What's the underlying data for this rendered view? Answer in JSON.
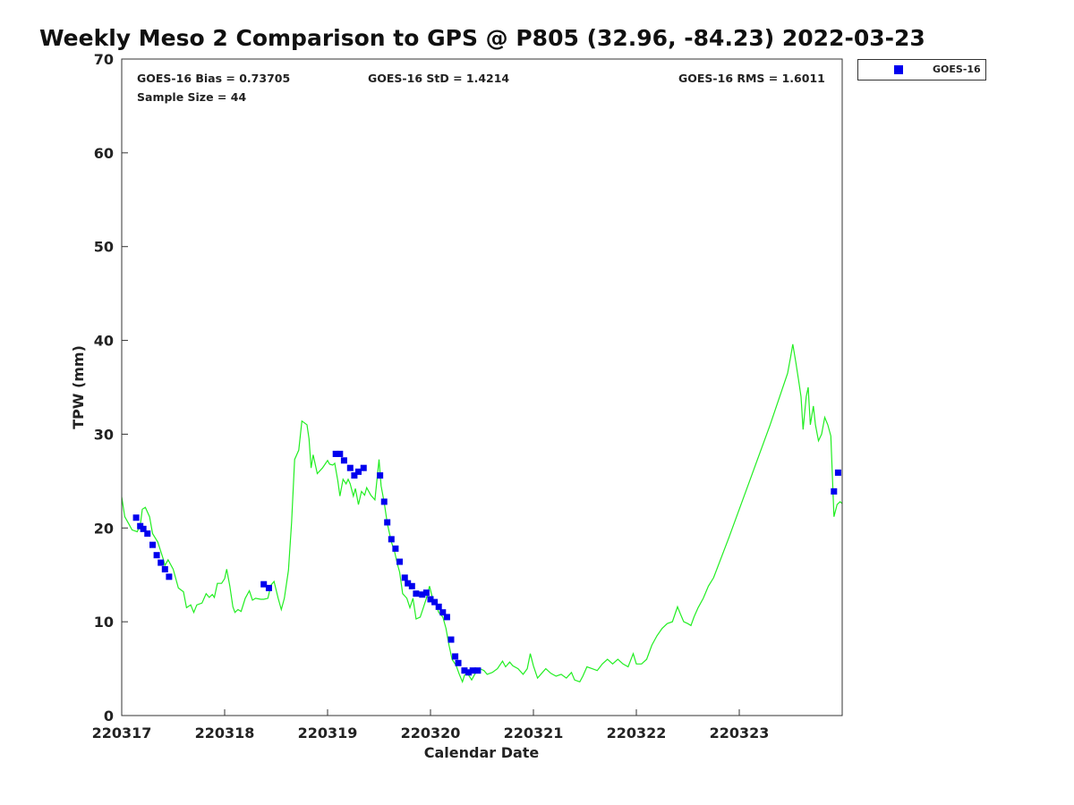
{
  "chart_data": {
    "type": "line+scatter",
    "title": "Weekly Meso 2 Comparison to GPS @ P805 (32.96, -84.23) 2022-03-23",
    "xlabel": "Calendar Date",
    "ylabel": "TPW (mm)",
    "xlim": [
      0,
      7
    ],
    "ylim": [
      0,
      70
    ],
    "x_ticks": [
      {
        "value": 0,
        "label": "220317"
      },
      {
        "value": 1,
        "label": "220318"
      },
      {
        "value": 2,
        "label": "220319"
      },
      {
        "value": 3,
        "label": "220320"
      },
      {
        "value": 4,
        "label": "220321"
      },
      {
        "value": 5,
        "label": "220322"
      },
      {
        "value": 6,
        "label": "220323"
      }
    ],
    "y_ticks": [
      0,
      10,
      20,
      30,
      40,
      50,
      60,
      70
    ],
    "stats": {
      "bias": "GOES-16 Bias = 0.73705",
      "std": "GOES-16 StD = 1.4214",
      "rms": "GOES-16 RMS = 1.6011",
      "sample": "Sample Size = 44"
    },
    "legend": {
      "label": "GOES-16",
      "color": "#0000ee",
      "position": "top-right outside"
    },
    "series": [
      {
        "name": "GPS",
        "kind": "line",
        "color": "#22ee22",
        "points": [
          [
            0.0,
            23.3
          ],
          [
            0.03,
            21.2
          ],
          [
            0.07,
            20.4
          ],
          [
            0.1,
            19.8
          ],
          [
            0.15,
            19.6
          ],
          [
            0.18,
            20.3
          ],
          [
            0.2,
            22.0
          ],
          [
            0.23,
            22.2
          ],
          [
            0.27,
            21.2
          ],
          [
            0.3,
            19.4
          ],
          [
            0.35,
            18.5
          ],
          [
            0.4,
            16.8
          ],
          [
            0.42,
            16.0
          ],
          [
            0.45,
            16.6
          ],
          [
            0.5,
            15.6
          ],
          [
            0.55,
            13.6
          ],
          [
            0.6,
            13.2
          ],
          [
            0.63,
            11.5
          ],
          [
            0.67,
            11.8
          ],
          [
            0.7,
            11.0
          ],
          [
            0.73,
            11.8
          ],
          [
            0.78,
            12.0
          ],
          [
            0.82,
            13.0
          ],
          [
            0.85,
            12.6
          ],
          [
            0.88,
            12.9
          ],
          [
            0.9,
            12.6
          ],
          [
            0.93,
            14.1
          ],
          [
            0.97,
            14.1
          ],
          [
            1.0,
            14.6
          ],
          [
            1.02,
            15.6
          ],
          [
            1.05,
            13.8
          ],
          [
            1.08,
            11.6
          ],
          [
            1.1,
            11.0
          ],
          [
            1.13,
            11.3
          ],
          [
            1.16,
            11.1
          ],
          [
            1.2,
            12.5
          ],
          [
            1.24,
            13.3
          ],
          [
            1.27,
            12.3
          ],
          [
            1.3,
            12.5
          ],
          [
            1.35,
            12.4
          ],
          [
            1.38,
            12.4
          ],
          [
            1.42,
            12.5
          ],
          [
            1.45,
            13.9
          ],
          [
            1.48,
            14.3
          ],
          [
            1.52,
            12.5
          ],
          [
            1.55,
            11.3
          ],
          [
            1.58,
            12.5
          ],
          [
            1.62,
            15.5
          ],
          [
            1.65,
            20.6
          ],
          [
            1.68,
            27.3
          ],
          [
            1.72,
            28.3
          ],
          [
            1.75,
            31.4
          ],
          [
            1.8,
            31.0
          ],
          [
            1.82,
            29.5
          ],
          [
            1.84,
            26.4
          ],
          [
            1.86,
            27.8
          ],
          [
            1.9,
            25.8
          ],
          [
            1.95,
            26.4
          ],
          [
            2.0,
            27.2
          ],
          [
            2.02,
            26.8
          ],
          [
            2.05,
            26.7
          ],
          [
            2.07,
            26.9
          ],
          [
            2.1,
            25.0
          ],
          [
            2.12,
            23.4
          ],
          [
            2.15,
            25.2
          ],
          [
            2.18,
            24.7
          ],
          [
            2.2,
            25.2
          ],
          [
            2.22,
            24.7
          ],
          [
            2.25,
            23.4
          ],
          [
            2.27,
            24.2
          ],
          [
            2.3,
            22.5
          ],
          [
            2.33,
            23.9
          ],
          [
            2.36,
            23.5
          ],
          [
            2.38,
            24.3
          ],
          [
            2.42,
            23.5
          ],
          [
            2.46,
            23.0
          ],
          [
            2.5,
            27.3
          ],
          [
            2.52,
            24.5
          ],
          [
            2.55,
            22.7
          ],
          [
            2.58,
            20.5
          ],
          [
            2.62,
            18.5
          ],
          [
            2.65,
            17.5
          ],
          [
            2.68,
            16.1
          ],
          [
            2.7,
            15.3
          ],
          [
            2.73,
            13.0
          ],
          [
            2.77,
            12.5
          ],
          [
            2.8,
            11.5
          ],
          [
            2.83,
            12.5
          ],
          [
            2.86,
            10.3
          ],
          [
            2.9,
            10.5
          ],
          [
            2.93,
            11.5
          ],
          [
            2.96,
            12.5
          ],
          [
            2.99,
            13.8
          ],
          [
            3.02,
            12.5
          ],
          [
            3.05,
            12.0
          ],
          [
            3.08,
            11.0
          ],
          [
            3.12,
            10.5
          ],
          [
            3.15,
            9.3
          ],
          [
            3.18,
            7.5
          ],
          [
            3.21,
            6.0
          ],
          [
            3.25,
            5.3
          ],
          [
            3.28,
            4.4
          ],
          [
            3.31,
            3.6
          ],
          [
            3.33,
            4.3
          ],
          [
            3.36,
            4.5
          ],
          [
            3.4,
            3.8
          ],
          [
            3.44,
            4.6
          ],
          [
            3.48,
            5.0
          ],
          [
            3.52,
            4.8
          ],
          [
            3.55,
            4.4
          ],
          [
            3.6,
            4.6
          ],
          [
            3.65,
            5.0
          ],
          [
            3.7,
            5.8
          ],
          [
            3.73,
            5.2
          ],
          [
            3.77,
            5.7
          ],
          [
            3.8,
            5.3
          ],
          [
            3.85,
            5.0
          ],
          [
            3.9,
            4.4
          ],
          [
            3.94,
            5.0
          ],
          [
            3.97,
            6.6
          ],
          [
            4.0,
            5.3
          ],
          [
            4.04,
            4.0
          ],
          [
            4.08,
            4.5
          ],
          [
            4.12,
            5.0
          ],
          [
            4.17,
            4.5
          ],
          [
            4.22,
            4.2
          ],
          [
            4.27,
            4.4
          ],
          [
            4.32,
            4.0
          ],
          [
            4.37,
            4.6
          ],
          [
            4.4,
            3.8
          ],
          [
            4.45,
            3.6
          ],
          [
            4.48,
            4.2
          ],
          [
            4.52,
            5.2
          ],
          [
            4.57,
            5.0
          ],
          [
            4.62,
            4.8
          ],
          [
            4.67,
            5.5
          ],
          [
            4.72,
            6.0
          ],
          [
            4.77,
            5.5
          ],
          [
            4.82,
            6.0
          ],
          [
            4.87,
            5.5
          ],
          [
            4.92,
            5.2
          ],
          [
            4.97,
            6.6
          ],
          [
            5.0,
            5.5
          ],
          [
            5.05,
            5.5
          ],
          [
            5.1,
            6.0
          ],
          [
            5.15,
            7.5
          ],
          [
            5.2,
            8.5
          ],
          [
            5.25,
            9.3
          ],
          [
            5.3,
            9.8
          ],
          [
            5.35,
            10.0
          ],
          [
            5.4,
            11.6
          ],
          [
            5.43,
            10.8
          ],
          [
            5.46,
            10.0
          ],
          [
            5.5,
            9.8
          ],
          [
            5.53,
            9.6
          ],
          [
            5.56,
            10.5
          ],
          [
            5.6,
            11.5
          ],
          [
            5.65,
            12.5
          ],
          [
            5.7,
            13.8
          ],
          [
            5.75,
            14.7
          ],
          [
            5.9,
            19.0
          ],
          [
            6.1,
            25.0
          ],
          [
            6.3,
            31.0
          ],
          [
            6.47,
            36.5
          ],
          [
            6.5,
            38.3
          ],
          [
            6.52,
            39.6
          ],
          [
            6.55,
            37.6
          ],
          [
            6.58,
            35.5
          ],
          [
            6.6,
            34.0
          ],
          [
            6.62,
            30.5
          ],
          [
            6.65,
            34.0
          ],
          [
            6.67,
            35.0
          ],
          [
            6.69,
            31.0
          ],
          [
            6.72,
            33.0
          ],
          [
            6.74,
            31.0
          ],
          [
            6.77,
            29.3
          ],
          [
            6.8,
            30.0
          ],
          [
            6.83,
            31.8
          ],
          [
            6.86,
            31.0
          ],
          [
            6.89,
            29.8
          ],
          [
            6.92,
            21.2
          ],
          [
            6.95,
            22.5
          ],
          [
            6.98,
            22.8
          ],
          [
            7.0,
            22.6
          ]
        ]
      },
      {
        "name": "GOES-16",
        "kind": "scatter",
        "color": "#0000ee",
        "points": [
          [
            0.14,
            21.1
          ],
          [
            0.18,
            20.2
          ],
          [
            0.21,
            19.9
          ],
          [
            0.25,
            19.4
          ],
          [
            0.3,
            18.2
          ],
          [
            0.34,
            17.1
          ],
          [
            0.38,
            16.3
          ],
          [
            0.42,
            15.6
          ],
          [
            0.46,
            14.8
          ],
          [
            1.38,
            14.0
          ],
          [
            1.43,
            13.6
          ],
          [
            2.08,
            27.9
          ],
          [
            2.12,
            27.9
          ],
          [
            2.16,
            27.2
          ],
          [
            2.22,
            26.4
          ],
          [
            2.26,
            25.6
          ],
          [
            2.3,
            26.0
          ],
          [
            2.35,
            26.4
          ],
          [
            2.51,
            25.6
          ],
          [
            2.55,
            22.8
          ],
          [
            2.58,
            20.6
          ],
          [
            2.62,
            18.8
          ],
          [
            2.66,
            17.8
          ],
          [
            2.7,
            16.4
          ],
          [
            2.75,
            14.7
          ],
          [
            2.78,
            14.1
          ],
          [
            2.82,
            13.8
          ],
          [
            2.86,
            13.0
          ],
          [
            2.92,
            12.9
          ],
          [
            2.96,
            13.1
          ],
          [
            3.0,
            12.4
          ],
          [
            3.04,
            12.1
          ],
          [
            3.08,
            11.6
          ],
          [
            3.12,
            11.0
          ],
          [
            3.16,
            10.5
          ],
          [
            3.2,
            8.1
          ],
          [
            3.24,
            6.3
          ],
          [
            3.27,
            5.6
          ],
          [
            3.33,
            4.8
          ],
          [
            3.37,
            4.6
          ],
          [
            3.41,
            4.8
          ],
          [
            3.46,
            4.8
          ],
          [
            6.92,
            23.9
          ],
          [
            6.96,
            25.9
          ]
        ]
      }
    ]
  }
}
